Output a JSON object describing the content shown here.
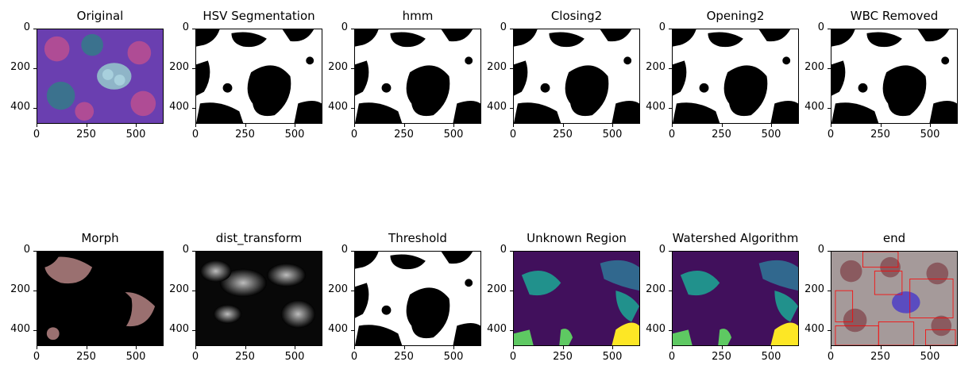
{
  "figure": {
    "panels": [
      {
        "title": "Original",
        "image": "original-pseudocolor"
      },
      {
        "title": "HSV Segmentation",
        "image": "binary-mask"
      },
      {
        "title": "hmm",
        "image": "binary-mask"
      },
      {
        "title": "Closing2",
        "image": "binary-mask"
      },
      {
        "title": "Opening2",
        "image": "binary-mask"
      },
      {
        "title": "WBC Removed",
        "image": "binary-mask"
      },
      {
        "title": "Morph",
        "image": "masked-color"
      },
      {
        "title": "dist_transform",
        "image": "grayscale-distance"
      },
      {
        "title": "Threshold",
        "image": "binary-mask"
      },
      {
        "title": "Unknown Region",
        "image": "viridis-labels"
      },
      {
        "title": "Watershed Algorithm",
        "image": "viridis-labels"
      },
      {
        "title": "end",
        "image": "color-with-boxes"
      }
    ],
    "x_ticks": [
      "0",
      "250",
      "500"
    ],
    "y_ticks": [
      "0",
      "200",
      "400"
    ],
    "colors": {
      "background": "#ffffff",
      "mask_white": "#ffffff",
      "mask_black": "#000000",
      "viridis_dark": "#440154",
      "viridis_blue": "#31688e",
      "viridis_teal": "#21918c",
      "viridis_green": "#5ec962",
      "viridis_yellow": "#fde725",
      "box_red": "#ff0000"
    }
  }
}
